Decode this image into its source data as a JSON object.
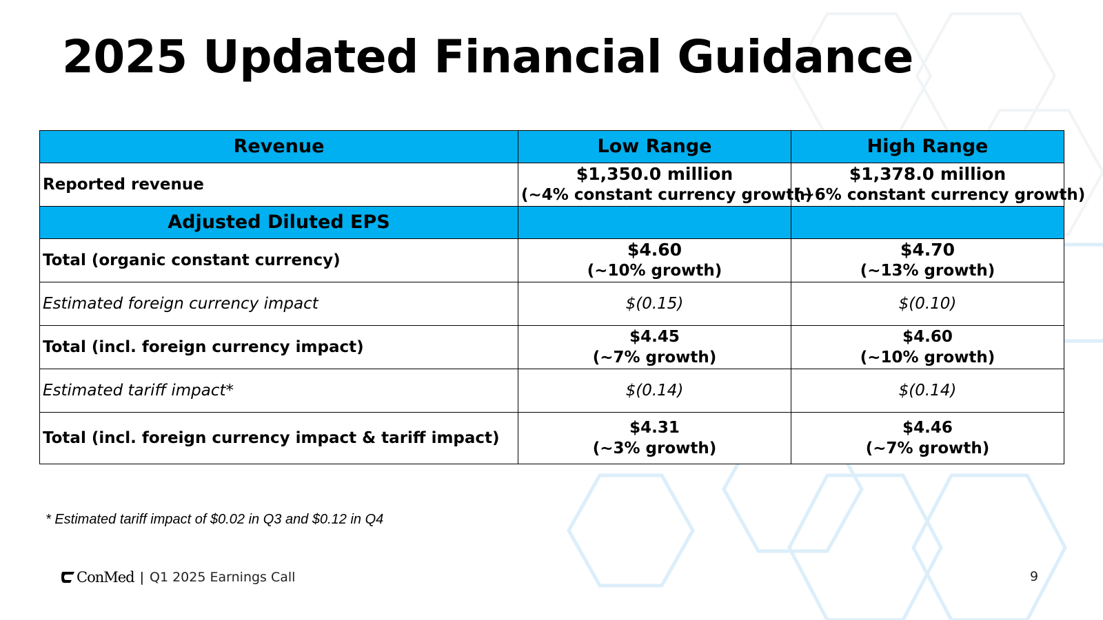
{
  "slide": {
    "title": "2025 Updated Financial Guidance",
    "footnote": "* Estimated tariff impact of $0.02 in Q3 and $0.12 in Q4",
    "footer": {
      "logo_text": "ConMed",
      "separator": "|",
      "event": "Q1 2025 Earnings Call",
      "page_number": "9"
    },
    "colors": {
      "header_fill": "#00b0f0",
      "border": "#000000",
      "background_hex": "#cfe8f7"
    }
  },
  "table": {
    "headers": {
      "revenue": "Revenue",
      "low": "Low Range",
      "high": "High Range"
    },
    "reported_revenue": {
      "label": "Reported revenue",
      "low_amount": "$1,350.0 million",
      "low_growth": "(~4% constant currency growth)",
      "high_amount": "$1,378.0 million",
      "high_growth": "(~6% constant currency growth)"
    },
    "eps_header": "Adjusted Diluted EPS",
    "rows": [
      {
        "label": "Total (organic constant currency)",
        "low_value": "$4.60",
        "low_growth": "(~10% growth)",
        "high_value": "$4.70",
        "high_growth": "(~13% growth)"
      },
      {
        "label": "Estimated foreign currency impact",
        "low_value": "$(0.15)",
        "high_value": "$(0.10)"
      },
      {
        "label": "Total (incl. foreign currency impact)",
        "low_value": "$4.45",
        "low_growth": "(~7% growth)",
        "high_value": "$4.60",
        "high_growth": "(~10% growth)"
      },
      {
        "label": "Estimated tariff impact*",
        "low_value": "$(0.14)",
        "high_value": "$(0.14)"
      },
      {
        "label": "Total (incl. foreign currency impact & tariff impact)",
        "low_value": "$4.31",
        "low_growth": "(~3% growth)",
        "high_value": "$4.46",
        "high_growth": "(~7% growth)"
      }
    ]
  }
}
